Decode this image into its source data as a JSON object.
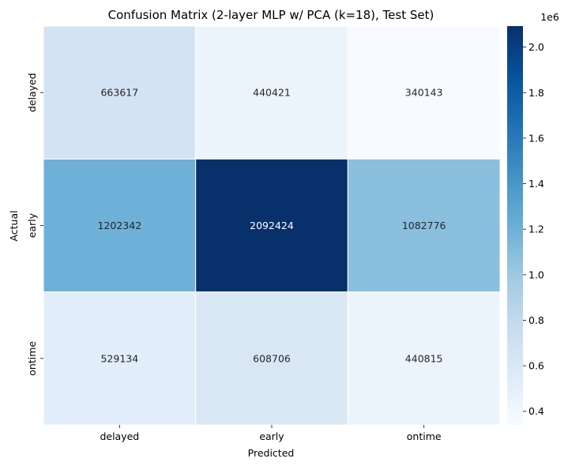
{
  "chart_data": {
    "type": "heatmap",
    "title": "Confusion Matrix (2-layer MLP w/ PCA (k=18), Test Set)",
    "xlabel": "Predicted",
    "ylabel": "Actual",
    "x_categories": [
      "delayed",
      "early",
      "ontime"
    ],
    "y_categories": [
      "delayed",
      "early",
      "ontime"
    ],
    "values": [
      [
        663617,
        440421,
        340143
      ],
      [
        1202342,
        2092424,
        1082776
      ],
      [
        529134,
        608706,
        440815
      ]
    ],
    "colormap": "Blues",
    "colorbar": {
      "min": 340143,
      "max": 2092424,
      "ticks": [
        0.4,
        0.6,
        0.8,
        1.0,
        1.2,
        1.4,
        1.6,
        1.8,
        2.0
      ],
      "tick_labels": [
        "0.4",
        "0.6",
        "0.8",
        "1.0",
        "1.2",
        "1.4",
        "1.6",
        "1.8",
        "2.0"
      ],
      "offset_label": "1e6",
      "scale": 1000000
    }
  }
}
